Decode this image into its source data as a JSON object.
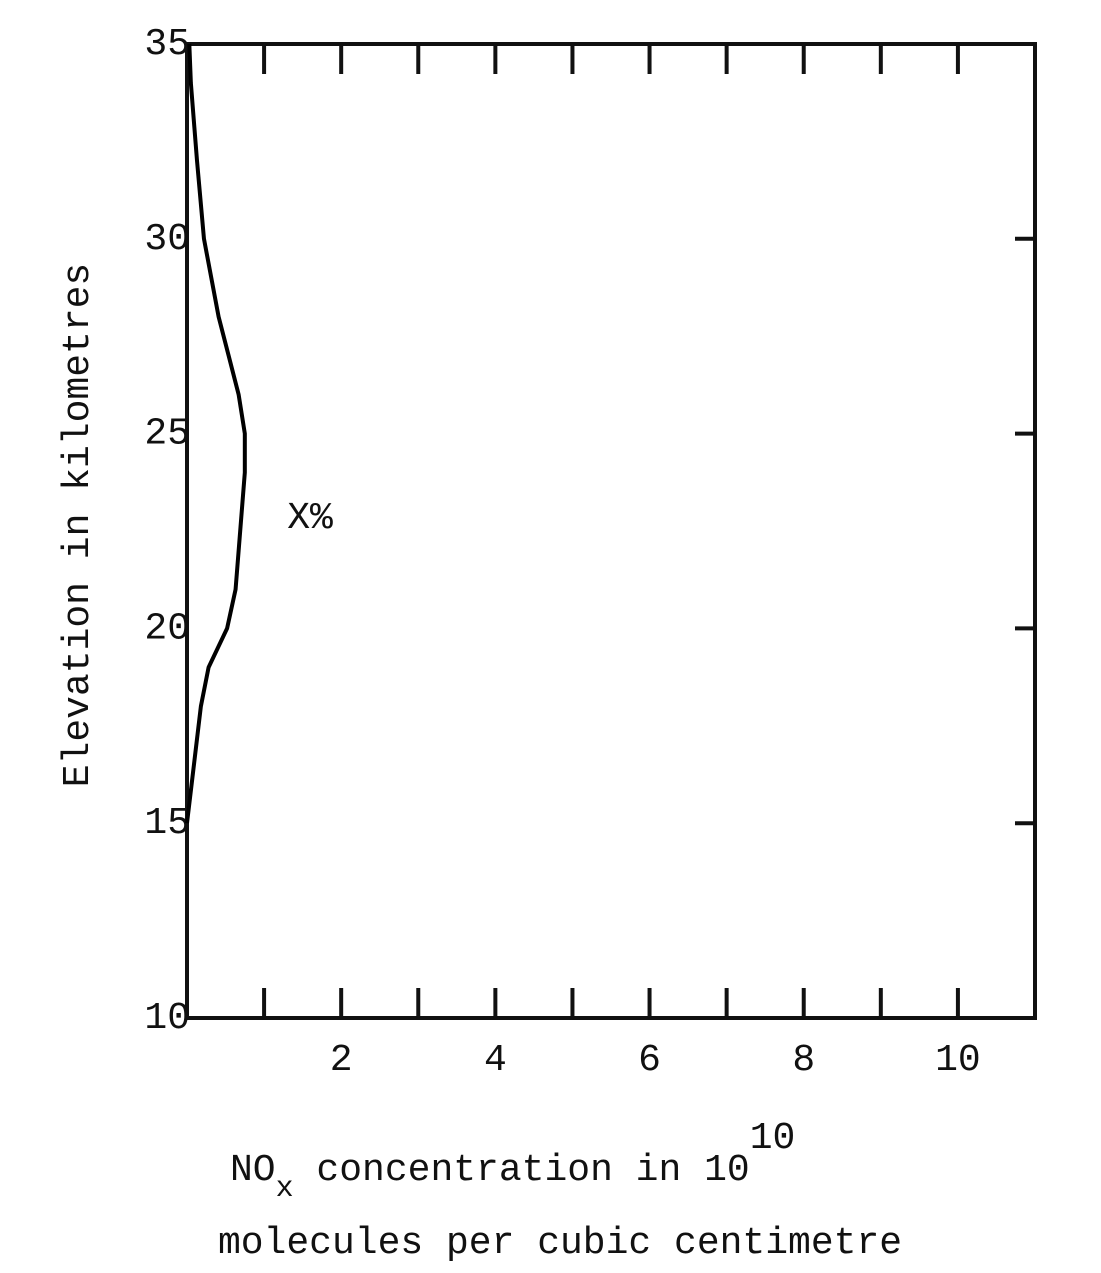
{
  "chart_data": {
    "type": "line",
    "y_label": "Elevation in kilometres",
    "x_label": {
      "line1": [
        "NO",
        "x",
        " concentration in 10",
        "10"
      ],
      "line2": "molecules per cubic centimetre"
    },
    "annotation": "X%",
    "xlim": [
      0,
      11
    ],
    "ylim": [
      10,
      35
    ],
    "xticks": [
      2,
      4,
      6,
      8,
      10
    ],
    "xminorticks": [
      1,
      3,
      5,
      7,
      9
    ],
    "yticks": [
      10,
      15,
      20,
      25,
      30,
      35
    ],
    "series": [
      {
        "color": "#000000",
        "x": [
          0.03,
          0.05,
          0.13,
          0.22,
          0.41,
          0.54,
          0.67,
          0.75,
          0.75,
          0.71,
          0.67,
          0.63,
          0.52,
          0.28,
          0.18,
          0.12,
          0.06,
          0
        ],
        "values": [
          35,
          34,
          32,
          30,
          28,
          27,
          26,
          25,
          24,
          23,
          22,
          21,
          20,
          19,
          18,
          17,
          16,
          15
        ]
      }
    ]
  }
}
